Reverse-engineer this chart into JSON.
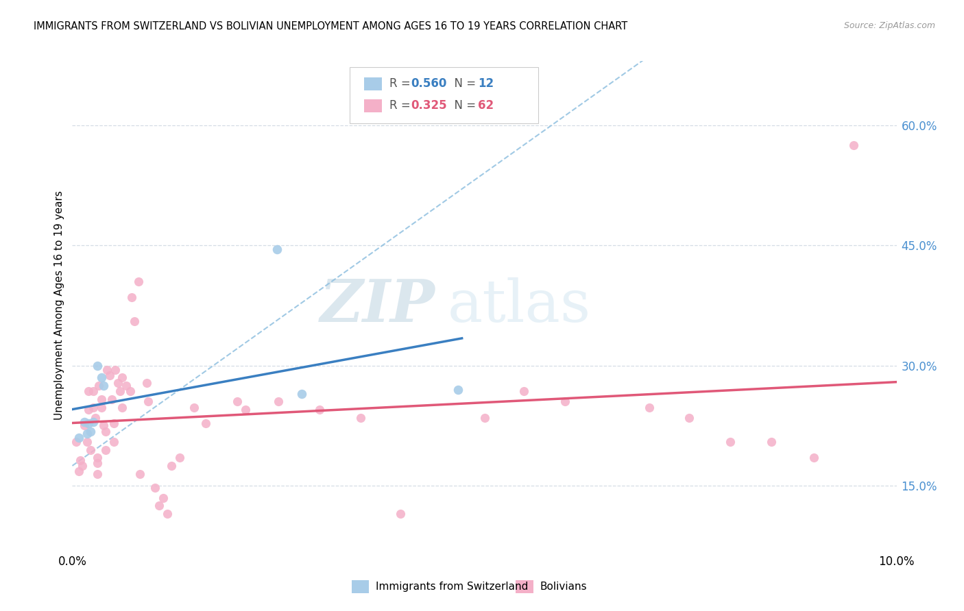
{
  "title": "IMMIGRANTS FROM SWITZERLAND VS BOLIVIAN UNEMPLOYMENT AMONG AGES 16 TO 19 YEARS CORRELATION CHART",
  "source": "Source: ZipAtlas.com",
  "ylabel": "Unemployment Among Ages 16 to 19 years",
  "y_ticks": [
    0.15,
    0.3,
    0.45,
    0.6
  ],
  "y_tick_labels": [
    "15.0%",
    "30.0%",
    "45.0%",
    "60.0%"
  ],
  "legend_label1": "Immigrants from Switzerland",
  "legend_label2": "Bolivians",
  "blue_color": "#a8cce8",
  "pink_color": "#f4b0c8",
  "trend_blue": "#3a7fc1",
  "trend_pink": "#e05878",
  "dashed_color": "#90c0e0",
  "swiss_x": [
    0.0008,
    0.0015,
    0.0018,
    0.002,
    0.0022,
    0.0025,
    0.003,
    0.0035,
    0.0038,
    0.0248,
    0.0278,
    0.0468
  ],
  "swiss_y": [
    0.21,
    0.23,
    0.215,
    0.228,
    0.218,
    0.23,
    0.3,
    0.285,
    0.275,
    0.445,
    0.265,
    0.27
  ],
  "bolivian_x": [
    0.0005,
    0.0008,
    0.001,
    0.0012,
    0.0015,
    0.0018,
    0.002,
    0.002,
    0.0022,
    0.0025,
    0.0025,
    0.0028,
    0.003,
    0.003,
    0.003,
    0.0032,
    0.0035,
    0.0035,
    0.0038,
    0.004,
    0.004,
    0.0042,
    0.0045,
    0.0048,
    0.005,
    0.005,
    0.0052,
    0.0055,
    0.0058,
    0.006,
    0.006,
    0.0065,
    0.007,
    0.0072,
    0.0075,
    0.008,
    0.0082,
    0.009,
    0.0092,
    0.01,
    0.0105,
    0.011,
    0.0115,
    0.012,
    0.013,
    0.0148,
    0.0162,
    0.02,
    0.021,
    0.025,
    0.03,
    0.035,
    0.0398,
    0.05,
    0.0548,
    0.0598,
    0.07,
    0.0748,
    0.0798,
    0.0848,
    0.09,
    0.0948
  ],
  "bolivian_y": [
    0.205,
    0.168,
    0.182,
    0.175,
    0.225,
    0.205,
    0.268,
    0.245,
    0.195,
    0.268,
    0.248,
    0.235,
    0.185,
    0.178,
    0.165,
    0.275,
    0.258,
    0.248,
    0.225,
    0.218,
    0.195,
    0.295,
    0.288,
    0.258,
    0.228,
    0.205,
    0.295,
    0.278,
    0.268,
    0.248,
    0.285,
    0.275,
    0.268,
    0.385,
    0.355,
    0.405,
    0.165,
    0.278,
    0.255,
    0.148,
    0.125,
    0.135,
    0.115,
    0.175,
    0.185,
    0.248,
    0.228,
    0.255,
    0.245,
    0.255,
    0.245,
    0.235,
    0.115,
    0.235,
    0.268,
    0.255,
    0.248,
    0.235,
    0.205,
    0.205,
    0.185,
    0.575
  ]
}
